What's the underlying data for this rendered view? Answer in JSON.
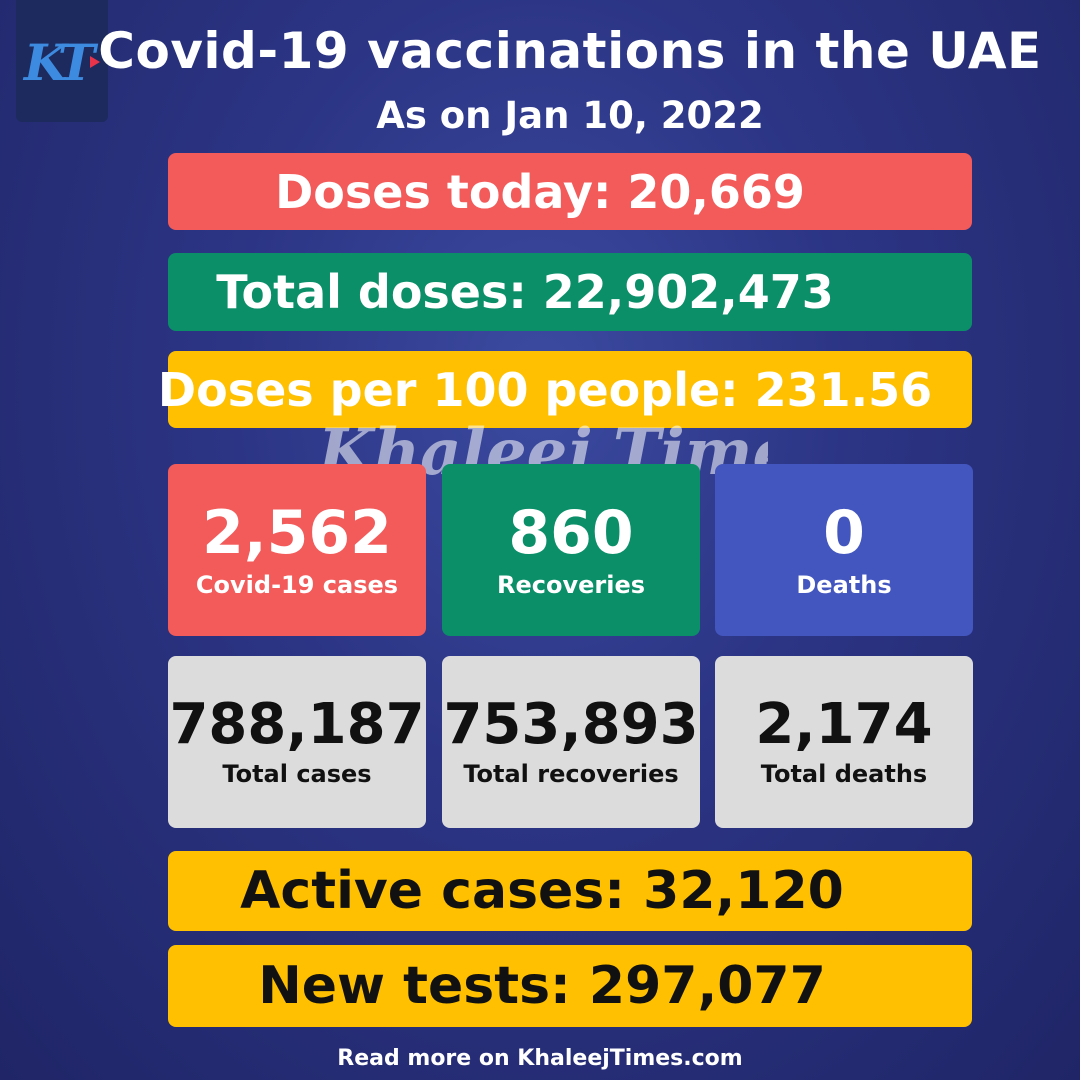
{
  "header": {
    "logo_icon": "khaleej-times-logo-icon",
    "title": "Covid-19 vaccinations in the UAE",
    "subtitle": "As on Jan 10, 2022"
  },
  "vaccination": {
    "doses_today": "Doses today: 20,669",
    "total_doses": "Total doses: 22,902,473",
    "doses_per_100": "Doses per 100 people: 231.56"
  },
  "watermark": "Khaleej Times",
  "daily": [
    {
      "value": "2,562",
      "label": "Covid-19 cases",
      "color": "#f35a5a"
    },
    {
      "value": "860",
      "label": "Recoveries",
      "color": "#0b8f68"
    },
    {
      "value": "0",
      "label": "Deaths",
      "color": "#4356bf"
    }
  ],
  "totals": [
    {
      "value": "788,187",
      "label": "Total cases"
    },
    {
      "value": "753,893",
      "label": "Total recoveries"
    },
    {
      "value": "2,174",
      "label": "Total deaths"
    }
  ],
  "active_cases": "Active cases: 32,120",
  "new_tests": "New tests: 297,077",
  "footer": "Read more on KhaleejTimes.com",
  "colors": {
    "background": "#2c3585",
    "red": "#f35a5a",
    "green": "#0b8f68",
    "yellow": "#fec000",
    "blue": "#4356bf",
    "grey": "#dcdcdc"
  }
}
